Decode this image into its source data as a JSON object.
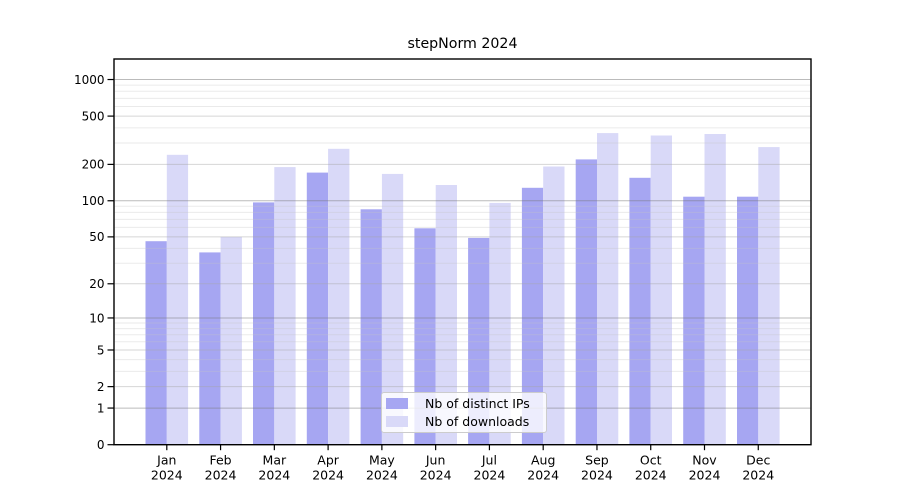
{
  "figure": {
    "title": "stepNorm 2024"
  },
  "chart_data": {
    "type": "bar",
    "title": "stepNorm 2024",
    "categories": [
      "Jan",
      "Feb",
      "Mar",
      "Apr",
      "May",
      "Jun",
      "Jul",
      "Aug",
      "Sep",
      "Oct",
      "Nov",
      "Dec"
    ],
    "x_year": "2024",
    "series": [
      {
        "name": "Nb of distinct IPs",
        "color": "#a6a6f2",
        "values": [
          46,
          37,
          97,
          171,
          85,
          59,
          49,
          128,
          220,
          155,
          108,
          108
        ]
      },
      {
        "name": "Nb of downloads",
        "color": "#d9d9f8",
        "values": [
          240,
          50,
          190,
          269,
          167,
          135,
          96,
          192,
          362,
          346,
          356,
          278
        ]
      }
    ],
    "yscale": "log10(value+1)",
    "y_major_ticks": [
      0,
      1,
      2,
      5,
      10,
      20,
      50,
      100,
      200,
      500,
      1000
    ],
    "y_decade_ticks": [
      1,
      10,
      100,
      1000
    ],
    "y_minor_ticks": [
      3,
      4,
      6,
      7,
      8,
      9,
      30,
      40,
      60,
      70,
      80,
      90,
      300,
      400,
      600,
      700,
      800,
      900
    ],
    "ylim": [
      0,
      1475
    ],
    "xlabel": "",
    "ylabel": "",
    "grid": "both, drawn over bars",
    "legend_position": "lower center"
  },
  "colors": {
    "background": "#ffffff",
    "spine": "#000000",
    "tick_text": "#000000",
    "grid_decade": "rgba(120,120,120,0.50)",
    "grid_labeled": "rgba(165,165,165,0.45)",
    "grid_minor": "rgba(195,195,195,0.35)",
    "legend_border": "#cccccc",
    "legend_bg": "rgba(255,255,255,0.8)"
  }
}
